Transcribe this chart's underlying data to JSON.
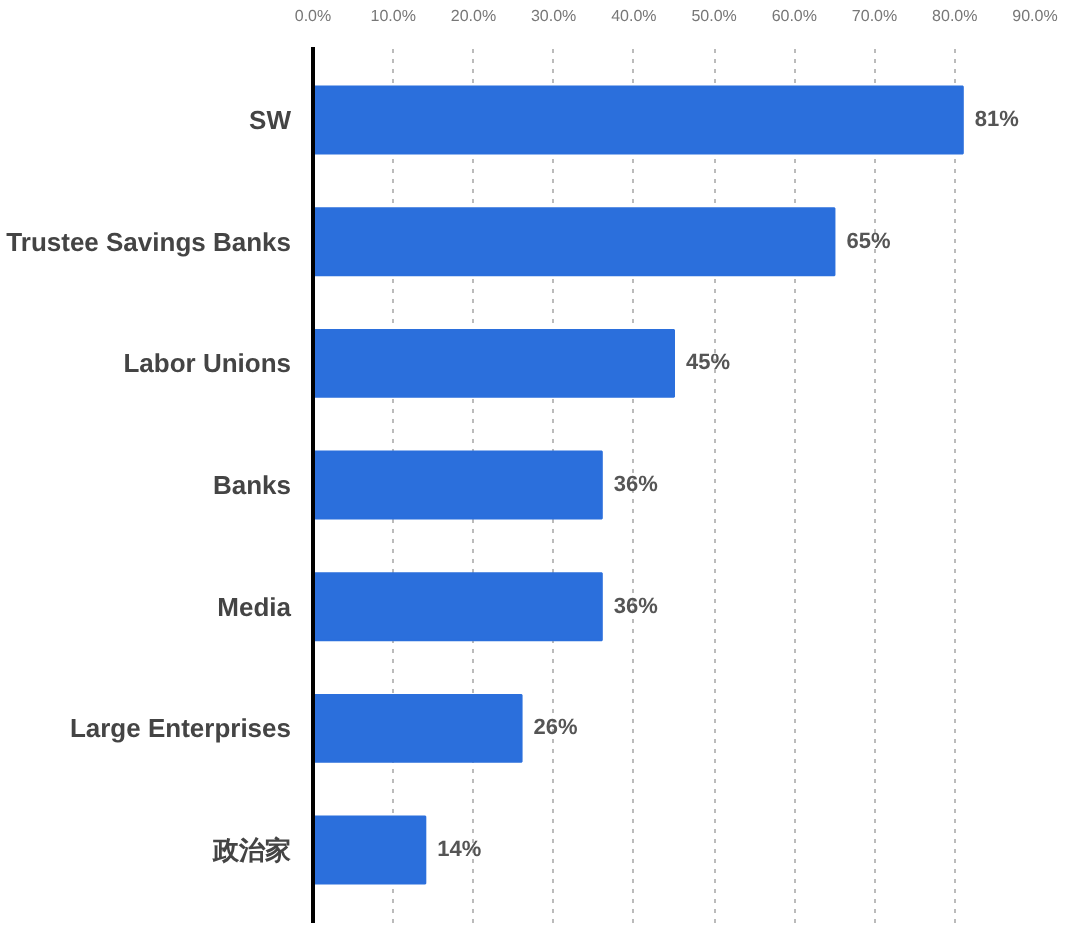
{
  "chart_data": {
    "type": "bar",
    "orientation": "horizontal",
    "categories": [
      "SW",
      "Trustee Savings Banks",
      "Labor Unions",
      "Banks",
      "Media",
      "Large Enterprises",
      "政治家"
    ],
    "values": [
      81,
      65,
      45,
      36,
      36,
      26,
      14
    ],
    "value_labels": [
      "81%",
      "65%",
      "45%",
      "36%",
      "36%",
      "26%",
      "14%"
    ],
    "color": "#2b6fdc",
    "xlim": [
      0,
      90
    ],
    "xticks": [
      {
        "value": 0,
        "label": "0.0%"
      },
      {
        "value": 10,
        "label": "10.0%"
      },
      {
        "value": 20,
        "label": "20.0%"
      },
      {
        "value": 30,
        "label": "30.0%"
      },
      {
        "value": 40,
        "label": "40.0%"
      },
      {
        "value": 50,
        "label": "50.0%"
      },
      {
        "value": 60,
        "label": "60.0%"
      },
      {
        "value": 70,
        "label": "70.0%"
      },
      {
        "value": 80,
        "label": "80.0%"
      },
      {
        "value": 90,
        "label": "90.0%"
      }
    ],
    "grid": "x"
  }
}
